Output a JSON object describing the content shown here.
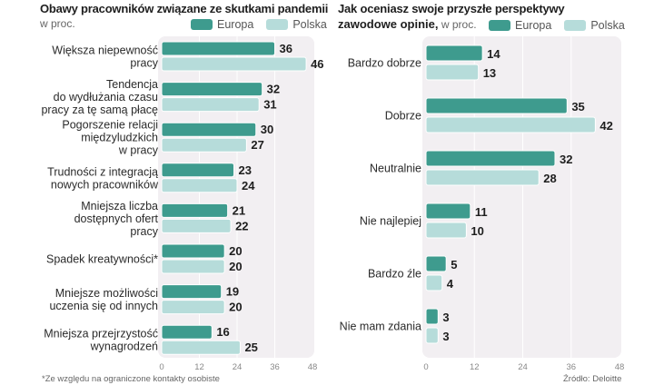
{
  "colors": {
    "europa": "#3e9b8e",
    "polska": "#b6dcda",
    "plot_bg": "#f2eff2",
    "value_text": "#1e1e1e"
  },
  "chart_data": [
    {
      "type": "bar",
      "orientation": "horizontal",
      "title": "Obawy pracowników związane ze skutkami pandemii",
      "subtitle": "w proc.",
      "legend": [
        "Europa",
        "Polska"
      ],
      "legend_placement": "top-right",
      "categories": [
        [
          "Większa niepewność",
          "pracy"
        ],
        [
          "Tendencja",
          "do wydłużania czasu",
          "pracy za tę samą płacę"
        ],
        [
          "Pogorszenie relacji",
          "międzyludzkich",
          "w pracy"
        ],
        [
          "Trudności z integracją",
          "nowych pracowników"
        ],
        [
          "Mniejsza liczba",
          "dostępnych ofert",
          "pracy"
        ],
        [
          "Spadek kreatywności*"
        ],
        [
          "Mniejsze możliwości",
          "uczenia się od innych"
        ],
        [
          "Mniejsza przejrzystość",
          "wynagrodzeń"
        ]
      ],
      "series": [
        {
          "name": "Europa",
          "values": [
            36,
            32,
            30,
            23,
            21,
            20,
            19,
            16
          ]
        },
        {
          "name": "Polska",
          "values": [
            46,
            31,
            27,
            24,
            22,
            20,
            20,
            25
          ]
        }
      ],
      "xlim": [
        0,
        48
      ],
      "xticks": [
        0,
        12,
        24,
        36,
        48
      ],
      "grid": true,
      "footnote": "*Ze względu na ograniczone kontakty osobiste"
    },
    {
      "type": "bar",
      "orientation": "horizontal",
      "title_bold": "Jak oceniasz swoje przyszłe perspektywy zawodowe opinie,",
      "title_line1": "Jak oceniasz swoje przyszłe perspektywy",
      "title_line2_bold": "zawodowe opinie,",
      "subtitle": "w proc.",
      "legend": [
        "Europa",
        "Polska"
      ],
      "legend_placement": "top-right",
      "categories": [
        [
          "Bardzo dobrze"
        ],
        [
          "Dobrze"
        ],
        [
          "Neutralnie"
        ],
        [
          "Nie najlepiej"
        ],
        [
          "Bardzo źle"
        ],
        [
          "Nie mam zdania"
        ]
      ],
      "series": [
        {
          "name": "Europa",
          "values": [
            14,
            35,
            32,
            11,
            5,
            3
          ]
        },
        {
          "name": "Polska",
          "values": [
            13,
            42,
            28,
            10,
            4,
            3
          ]
        }
      ],
      "xlim": [
        0,
        48
      ],
      "xticks": [
        0,
        12,
        24,
        36,
        48
      ],
      "grid": true,
      "source": "Źródło: Deloitte"
    }
  ]
}
